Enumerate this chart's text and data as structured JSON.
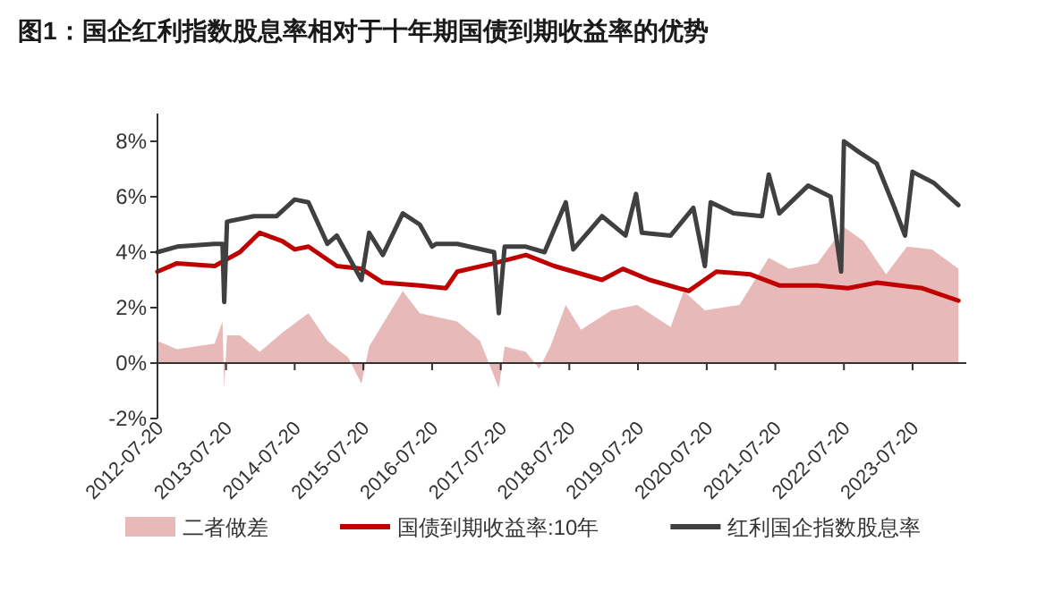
{
  "chart_data": {
    "type": "line",
    "title": "图1：国企红利指数股息率相对于十年期国债到期收益率的优势",
    "xlim": [
      "2012-07-20",
      "2024-05-01"
    ],
    "xticks": [
      "2012-07-20",
      "2013-07-20",
      "2014-07-20",
      "2015-07-20",
      "2016-07-20",
      "2017-07-20",
      "2018-07-20",
      "2019-07-20",
      "2020-07-20",
      "2021-07-20",
      "2022-07-20",
      "2023-07-20"
    ],
    "ylim": [
      -2,
      9
    ],
    "yticks": [
      {
        "value": -2,
        "label": "-2%"
      },
      {
        "value": 0,
        "label": "0%"
      },
      {
        "value": 2,
        "label": "2%"
      },
      {
        "value": 4,
        "label": "4%"
      },
      {
        "value": 6,
        "label": "6%"
      },
      {
        "value": 8,
        "label": "8%"
      }
    ],
    "legend": "bottom",
    "series": [
      {
        "name": "二者做差",
        "type": "area",
        "color": "#e8b9b9",
        "x": [
          "2012-07-20",
          "2012-11-01",
          "2013-05-20",
          "2013-07-01",
          "2013-07-10",
          "2013-07-25",
          "2013-10-01",
          "2014-01-15",
          "2014-05-15",
          "2014-10-01",
          "2015-01-10",
          "2015-05-01",
          "2015-07-10",
          "2015-08-20",
          "2016-02-15",
          "2016-05-15",
          "2016-12-01",
          "2017-04-01",
          "2017-07-10",
          "2017-08-10",
          "2017-12-01",
          "2018-02-10",
          "2018-04-10",
          "2018-07-01",
          "2018-09-20",
          "2019-03-01",
          "2019-07-15",
          "2020-01-10",
          "2020-03-20",
          "2020-07-10",
          "2021-01-10",
          "2021-06-15",
          "2021-10-01",
          "2022-03-01",
          "2022-07-20",
          "2022-11-01",
          "2023-03-01",
          "2023-06-20",
          "2023-11-01",
          "2024-03-20"
        ],
        "values": [
          0.8,
          0.5,
          0.7,
          1.5,
          -0.9,
          1.0,
          1.0,
          0.4,
          1.1,
          1.8,
          0.8,
          0.2,
          -0.75,
          0.6,
          2.6,
          1.8,
          1.5,
          0.8,
          -0.9,
          0.6,
          0.4,
          -0.2,
          0.6,
          2.1,
          1.2,
          1.9,
          2.1,
          1.3,
          2.6,
          1.9,
          2.1,
          3.8,
          3.4,
          3.6,
          4.9,
          4.4,
          3.2,
          4.2,
          4.1,
          3.4
        ]
      },
      {
        "name": "国债到期收益率:10年",
        "color": "#c00000",
        "x": [
          "2012-07-20",
          "2012-11-01",
          "2013-05-20",
          "2013-10-01",
          "2014-01-15",
          "2014-05-15",
          "2014-07-20",
          "2014-10-01",
          "2015-03-01",
          "2015-07-10",
          "2015-11-01",
          "2016-05-15",
          "2016-10-01",
          "2016-12-01",
          "2017-06-15",
          "2017-12-01",
          "2018-05-01",
          "2019-01-10",
          "2019-05-01",
          "2019-09-20",
          "2020-04-15",
          "2020-09-10",
          "2021-03-10",
          "2021-08-10",
          "2022-03-01",
          "2022-08-10",
          "2023-01-10",
          "2023-09-10",
          "2024-03-20"
        ],
        "values": [
          3.3,
          3.6,
          3.5,
          4.0,
          4.7,
          4.4,
          4.1,
          4.2,
          3.5,
          3.4,
          2.9,
          2.8,
          2.7,
          3.3,
          3.6,
          3.9,
          3.5,
          3.0,
          3.4,
          3.0,
          2.6,
          3.3,
          3.2,
          2.8,
          2.8,
          2.7,
          2.9,
          2.7,
          2.25
        ]
      },
      {
        "name": "红利国企指数股息率",
        "color": "#404040",
        "x": [
          "2012-07-20",
          "2012-11-01",
          "2013-05-20",
          "2013-07-01",
          "2013-07-10",
          "2013-07-25",
          "2013-12-15",
          "2014-04-15",
          "2014-07-20",
          "2014-10-01",
          "2015-01-10",
          "2015-03-01",
          "2015-07-10",
          "2015-08-20",
          "2015-11-01",
          "2016-02-15",
          "2016-05-15",
          "2016-07-20",
          "2016-08-10",
          "2016-12-01",
          "2017-06-15",
          "2017-07-10",
          "2017-08-10",
          "2017-12-01",
          "2018-03-10",
          "2018-07-01",
          "2018-08-10",
          "2019-01-10",
          "2019-05-15",
          "2019-07-10",
          "2019-08-10",
          "2020-01-10",
          "2020-05-10",
          "2020-07-10",
          "2020-08-10",
          "2020-12-10",
          "2021-05-10",
          "2021-06-15",
          "2021-08-10",
          "2022-01-10",
          "2022-05-10",
          "2022-07-05",
          "2022-07-20",
          "2022-10-10",
          "2023-01-10",
          "2023-04-15",
          "2023-06-10",
          "2023-07-20",
          "2023-11-10",
          "2024-03-20"
        ],
        "values": [
          4.0,
          4.2,
          4.3,
          4.3,
          2.2,
          5.1,
          5.3,
          5.3,
          5.9,
          5.8,
          4.3,
          4.6,
          3.0,
          4.7,
          3.9,
          5.4,
          5.0,
          4.2,
          4.3,
          4.3,
          4.0,
          1.8,
          4.2,
          4.2,
          4.0,
          5.8,
          4.1,
          5.3,
          4.6,
          6.1,
          4.7,
          4.6,
          5.6,
          3.5,
          5.8,
          5.4,
          5.3,
          6.8,
          5.4,
          6.4,
          6.0,
          3.3,
          8.0,
          7.6,
          7.2,
          5.6,
          4.6,
          6.9,
          6.5,
          5.7
        ]
      }
    ]
  }
}
